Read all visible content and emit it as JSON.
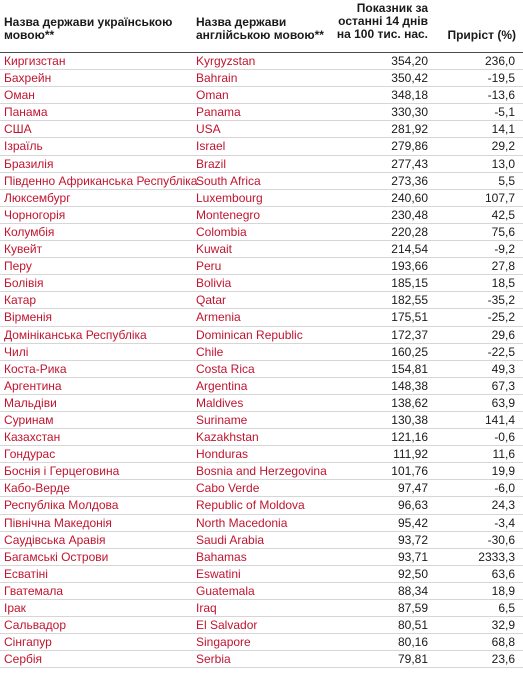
{
  "header": {
    "ukr_name": "Назва держави українською мовою**",
    "eng_name": "Назва держави англійською мовою**",
    "rate": "Показник за останні 14 днів на 100 тис. нас.",
    "growth": "Приріст (%)"
  },
  "rows": [
    {
      "ukr": "Киргизстан",
      "eng": "Kyrgyzstan",
      "rate": "354,20",
      "growth": "236,0"
    },
    {
      "ukr": "Бахрейн",
      "eng": "Bahrain",
      "rate": "350,42",
      "growth": "-19,5"
    },
    {
      "ukr": "Оман",
      "eng": "Oman",
      "rate": "348,18",
      "growth": "-13,6"
    },
    {
      "ukr": "Панама",
      "eng": "Panama",
      "rate": "330,30",
      "growth": "-5,1"
    },
    {
      "ukr": "США",
      "eng": "USA",
      "rate": "281,92",
      "growth": "14,1"
    },
    {
      "ukr": "Ізраїль",
      "eng": "Israel",
      "rate": "279,86",
      "growth": "29,2"
    },
    {
      "ukr": "Бразилія",
      "eng": "Brazil",
      "rate": "277,43",
      "growth": "13,0"
    },
    {
      "ukr": "Південно Африканська Республіка",
      "eng": "South Africa",
      "rate": "273,36",
      "growth": "5,5"
    },
    {
      "ukr": "Люксембург",
      "eng": "Luxembourg",
      "rate": "240,60",
      "growth": "107,7"
    },
    {
      "ukr": "Чорногорія",
      "eng": "Montenegro",
      "rate": "230,48",
      "growth": "42,5"
    },
    {
      "ukr": "Колумбія",
      "eng": "Colombia",
      "rate": "220,28",
      "growth": "75,6"
    },
    {
      "ukr": "Кувейт",
      "eng": "Kuwait",
      "rate": "214,54",
      "growth": "-9,2"
    },
    {
      "ukr": "Перу",
      "eng": "Peru",
      "rate": "193,66",
      "growth": "27,8"
    },
    {
      "ukr": "Болівія",
      "eng": "Bolivia",
      "rate": "185,15",
      "growth": "18,5"
    },
    {
      "ukr": "Катар",
      "eng": "Qatar",
      "rate": "182,55",
      "growth": "-35,2"
    },
    {
      "ukr": "Вірменія",
      "eng": "Armenia",
      "rate": "175,51",
      "growth": "-25,2"
    },
    {
      "ukr": "Домініканська Республіка",
      "eng": "Dominican Republic",
      "rate": "172,37",
      "growth": "29,6"
    },
    {
      "ukr": "Чилі",
      "eng": "Chile",
      "rate": "160,25",
      "growth": "-22,5"
    },
    {
      "ukr": "Коста-Рика",
      "eng": "Costa Rica",
      "rate": "154,81",
      "growth": "49,3"
    },
    {
      "ukr": "Аргентина",
      "eng": "Argentina",
      "rate": "148,38",
      "growth": "67,3"
    },
    {
      "ukr": "Мальдіви",
      "eng": "Maldives",
      "rate": "138,62",
      "growth": "63,9"
    },
    {
      "ukr": "Суринам",
      "eng": "Suriname",
      "rate": "130,38",
      "growth": "141,4"
    },
    {
      "ukr": "Казахстан",
      "eng": "Kazakhstan",
      "rate": "121,16",
      "growth": "-0,6"
    },
    {
      "ukr": "Гондурас",
      "eng": "Honduras",
      "rate": "111,92",
      "growth": "11,6"
    },
    {
      "ukr": "Боснія і Герцеговина",
      "eng": "Bosnia and Herzegovina",
      "rate": "101,76",
      "growth": "19,9"
    },
    {
      "ukr": "Кабо-Верде",
      "eng": "Cabo Verde",
      "rate": "97,47",
      "growth": "-6,0"
    },
    {
      "ukr": "Республіка Молдова",
      "eng": "Republic of Moldova",
      "rate": "96,63",
      "growth": "24,3"
    },
    {
      "ukr": "Північна Македонія",
      "eng": "North Macedonia",
      "rate": "95,42",
      "growth": "-3,4"
    },
    {
      "ukr": "Саудівська Аравія",
      "eng": "Saudi Arabia",
      "rate": "93,72",
      "growth": "-30,6"
    },
    {
      "ukr": "Багамські Острови",
      "eng": "Bahamas",
      "rate": "93,71",
      "growth": "2333,3"
    },
    {
      "ukr": "Есватіні",
      "eng": "Eswatini",
      "rate": "92,50",
      "growth": "63,6"
    },
    {
      "ukr": "Гватемала",
      "eng": "Guatemala",
      "rate": "88,34",
      "growth": "18,9"
    },
    {
      "ukr": "Ірак",
      "eng": "Iraq",
      "rate": "87,59",
      "growth": "6,5"
    },
    {
      "ukr": "Сальвадор",
      "eng": "El Salvador",
      "rate": "80,51",
      "growth": "32,9"
    },
    {
      "ukr": "Сінгапур",
      "eng": "Singapore",
      "rate": "80,16",
      "growth": "68,8"
    },
    {
      "ukr": "Сербія",
      "eng": "Serbia",
      "rate": "79,81",
      "growth": "23,6"
    }
  ],
  "colors": {
    "name_text": "#c0152f",
    "number_text": "#1a1a1a",
    "row_divider": "#d6d6d6"
  }
}
